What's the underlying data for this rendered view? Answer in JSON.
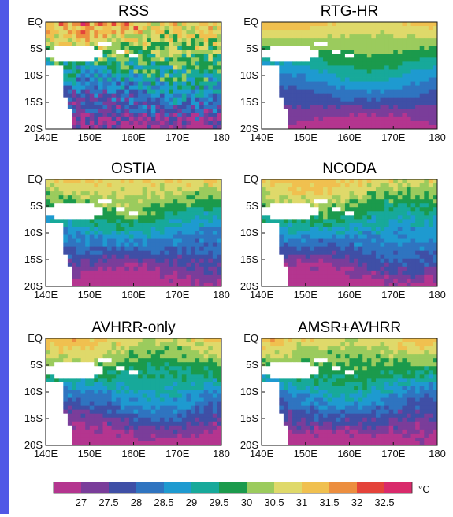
{
  "chart_data": {
    "type": "heatmap",
    "unit": "°C",
    "x_ticks": [
      "140E",
      "150E",
      "160E",
      "170E",
      "180"
    ],
    "y_ticks": [
      "EQ",
      "5S",
      "10S",
      "15S",
      "20S"
    ],
    "xlim": [
      140,
      180
    ],
    "ylim": [
      -20,
      0
    ],
    "legend_labels": [
      "27",
      "27.5",
      "28",
      "28.5",
      "29",
      "29.5",
      "30",
      "30.5",
      "31",
      "31.5",
      "32",
      "32.5"
    ],
    "colors": [
      "#b4358f",
      "#7a3d9a",
      "#3f4fa6",
      "#2f74c0",
      "#1e9ad0",
      "#17a99a",
      "#1b9a4c",
      "#9bcb5d",
      "#dfd96a",
      "#f0c04f",
      "#ec8e3f",
      "#e4433a",
      "#d92a6b"
    ],
    "panels": [
      {
        "title": "RSS"
      },
      {
        "title": "RTG-HR"
      },
      {
        "title": "OSTIA"
      },
      {
        "title": "NCODA"
      },
      {
        "title": "AVHRR-only"
      },
      {
        "title": "AMSR+AVHRR"
      }
    ]
  }
}
